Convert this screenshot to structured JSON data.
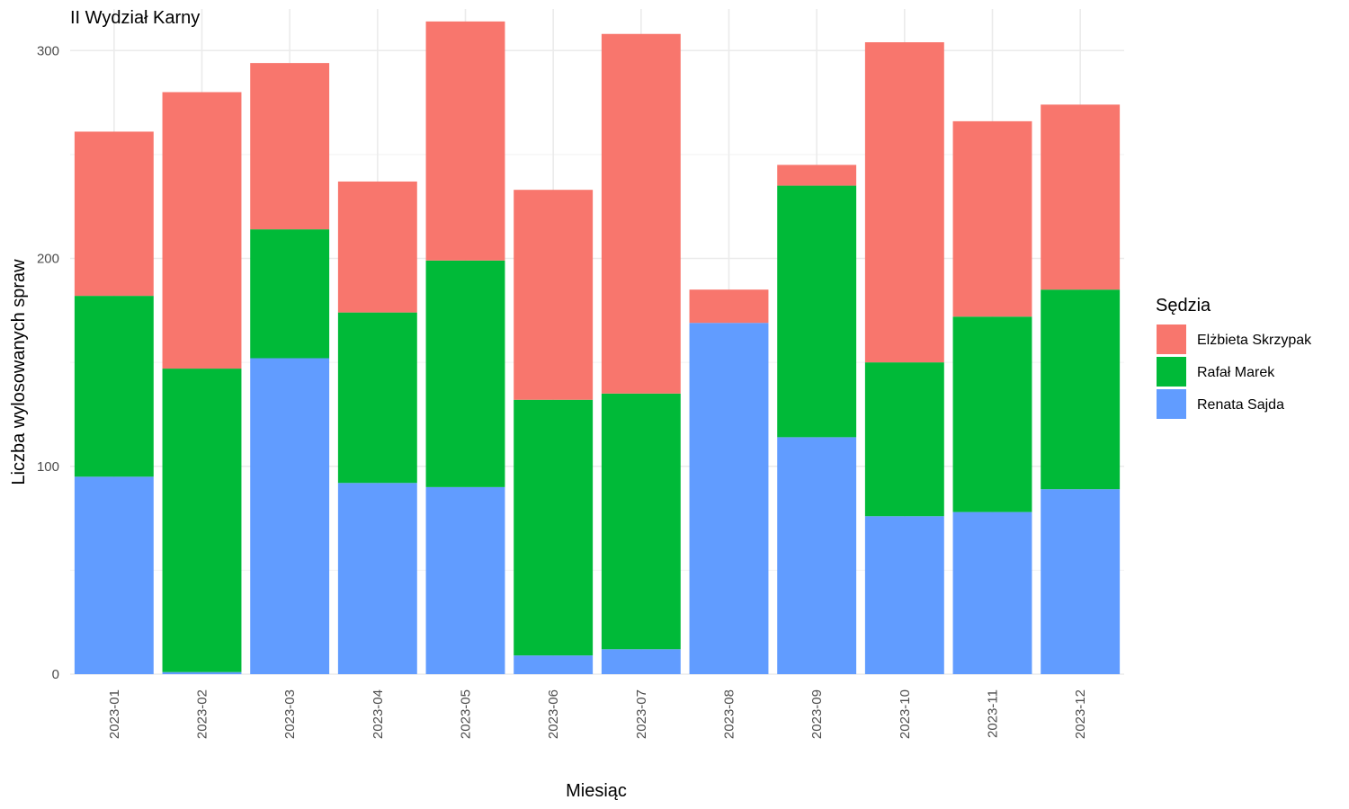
{
  "chart_data": {
    "type": "bar",
    "stacked": true,
    "title": "II Wydział Karny",
    "xlabel": "Miesiąc",
    "ylabel": "Liczba wylosowanych spraw",
    "ylim": [
      0,
      320
    ],
    "yticks": [
      0,
      100,
      200,
      300
    ],
    "grid": true,
    "legend": {
      "title": "Sędzia",
      "position": "right"
    },
    "categories": [
      "2023-01",
      "2023-02",
      "2023-03",
      "2023-04",
      "2023-05",
      "2023-06",
      "2023-07",
      "2023-08",
      "2023-09",
      "2023-10",
      "2023-11",
      "2023-12"
    ],
    "series": [
      {
        "name": "Elżbieta Skrzypak",
        "color": "#F8766D",
        "values": [
          79,
          133,
          80,
          63,
          115,
          101,
          173,
          16,
          10,
          154,
          94,
          89
        ]
      },
      {
        "name": "Rafał Marek",
        "color": "#00BA38",
        "values": [
          87,
          146,
          62,
          82,
          109,
          123,
          123,
          0,
          121,
          74,
          94,
          96
        ]
      },
      {
        "name": "Renata Sajda",
        "color": "#619CFF",
        "values": [
          95,
          1,
          152,
          92,
          90,
          9,
          12,
          169,
          114,
          76,
          78,
          89
        ]
      }
    ]
  }
}
